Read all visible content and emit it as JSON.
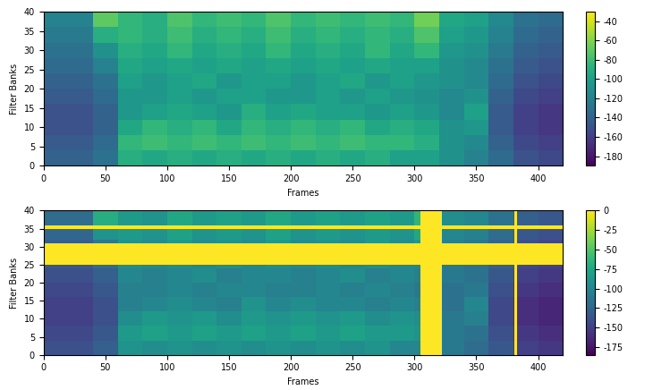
{
  "chart_data": [
    {
      "type": "heatmap",
      "x_label": "Frames",
      "y_label": "Filter Banks",
      "xlim": [
        0,
        420
      ],
      "ylim": [
        0,
        40
      ],
      "xticks": [
        0,
        50,
        100,
        150,
        200,
        250,
        300,
        350,
        400
      ],
      "yticks": [
        0,
        5,
        10,
        15,
        20,
        25,
        30,
        35,
        40
      ],
      "x_edges": [
        0,
        20,
        40,
        60,
        80,
        100,
        120,
        140,
        160,
        180,
        200,
        220,
        240,
        260,
        280,
        300,
        320,
        340,
        360,
        380,
        400,
        420
      ],
      "y_edges": [
        0,
        4,
        8,
        12,
        16,
        20,
        24,
        28,
        32,
        36,
        40
      ],
      "cells": [
        [
          -140,
          -140,
          -130,
          -90,
          -95,
          -90,
          -95,
          -90,
          -95,
          -90,
          -95,
          -90,
          -95,
          -90,
          -100,
          -100,
          -110,
          -120,
          -135,
          -150,
          -155
        ],
        [
          -145,
          -145,
          -135,
          -85,
          -80,
          -85,
          -80,
          -85,
          -80,
          -85,
          -80,
          -85,
          -80,
          -85,
          -85,
          -90,
          -110,
          -115,
          -140,
          -155,
          -160
        ],
        [
          -150,
          -150,
          -140,
          -95,
          -85,
          -90,
          -85,
          -95,
          -85,
          -90,
          -85,
          -90,
          -85,
          -95,
          -90,
          -95,
          -110,
          -105,
          -145,
          -160,
          -165
        ],
        [
          -150,
          -150,
          -140,
          -105,
          -100,
          -95,
          -100,
          -105,
          -90,
          -100,
          -95,
          -100,
          -100,
          -105,
          -100,
          -105,
          -115,
          -100,
          -145,
          -160,
          -165
        ],
        [
          -145,
          -145,
          -135,
          -105,
          -105,
          -100,
          -105,
          -100,
          -100,
          -105,
          -105,
          -100,
          -105,
          -100,
          -105,
          -110,
          -115,
          -110,
          -140,
          -155,
          -160
        ],
        [
          -140,
          -140,
          -130,
          -100,
          -105,
          -100,
          -95,
          -105,
          -100,
          -100,
          -105,
          -100,
          -95,
          -105,
          -100,
          -105,
          -110,
          -115,
          -135,
          -150,
          -155
        ],
        [
          -135,
          -135,
          -120,
          -95,
          -100,
          -95,
          -100,
          -95,
          -100,
          -95,
          -100,
          -95,
          -100,
          -95,
          -100,
          -100,
          -110,
          -115,
          -130,
          -145,
          -150
        ],
        [
          -130,
          -130,
          -110,
          -90,
          -95,
          -85,
          -95,
          -90,
          -95,
          -85,
          -95,
          -90,
          -95,
          -85,
          -95,
          -85,
          -105,
          -110,
          -125,
          -140,
          -145
        ],
        [
          -125,
          -125,
          -90,
          -85,
          -90,
          -80,
          -90,
          -85,
          -90,
          -80,
          -90,
          -85,
          -90,
          -85,
          -90,
          -75,
          -100,
          -105,
          -120,
          -135,
          -140
        ],
        [
          -120,
          -120,
          -70,
          -85,
          -90,
          -75,
          -85,
          -80,
          -85,
          -75,
          -85,
          -80,
          -85,
          -80,
          -85,
          -65,
          -95,
          -100,
          -115,
          -130,
          -135
        ]
      ],
      "colorbar_range": [
        -190,
        -30
      ],
      "colorbar_ticks": [
        -180,
        -160,
        -140,
        -120,
        -100,
        -80,
        -60,
        -40
      ]
    },
    {
      "type": "heatmap",
      "x_label": "Frames",
      "y_label": "Filter Banks",
      "xlim": [
        0,
        420
      ],
      "ylim": [
        0,
        40
      ],
      "xticks": [
        0,
        50,
        100,
        150,
        200,
        250,
        300,
        350,
        400
      ],
      "yticks": [
        0,
        5,
        10,
        15,
        20,
        25,
        30,
        35,
        40
      ],
      "x_edges": [
        0,
        20,
        40,
        60,
        80,
        100,
        120,
        140,
        160,
        180,
        200,
        220,
        240,
        260,
        280,
        300,
        320,
        340,
        360,
        380,
        400,
        420
      ],
      "y_edges": [
        0,
        4,
        8,
        12,
        16,
        20,
        24,
        28,
        32,
        36,
        40
      ],
      "cells": [
        [
          -140,
          -140,
          -130,
          -90,
          -95,
          -90,
          -95,
          -90,
          -95,
          -90,
          -95,
          -90,
          -95,
          -90,
          -100,
          -100,
          -110,
          -120,
          -135,
          -150,
          -155
        ],
        [
          -145,
          -145,
          -135,
          -85,
          -80,
          -85,
          -80,
          -85,
          -80,
          -85,
          -80,
          -85,
          -80,
          -85,
          -85,
          -90,
          -110,
          -115,
          -140,
          -155,
          -160
        ],
        [
          -150,
          -150,
          -140,
          -95,
          -85,
          -90,
          -85,
          -95,
          -85,
          -90,
          -85,
          -90,
          -85,
          -95,
          -90,
          -95,
          -110,
          -105,
          -145,
          -160,
          -165
        ],
        [
          -150,
          -150,
          -140,
          -105,
          -100,
          -95,
          -100,
          -105,
          -90,
          -100,
          -95,
          -100,
          -100,
          -105,
          -100,
          -105,
          -115,
          -100,
          -145,
          -160,
          -165
        ],
        [
          -145,
          -145,
          -135,
          -105,
          -105,
          -100,
          -105,
          -100,
          -100,
          -105,
          -105,
          -100,
          -105,
          -100,
          -105,
          -110,
          -115,
          -110,
          -140,
          -155,
          -160
        ],
        [
          -140,
          -140,
          -130,
          -100,
          -105,
          -100,
          -95,
          -105,
          -100,
          -100,
          -105,
          -100,
          -95,
          -105,
          -100,
          -105,
          -110,
          -115,
          -135,
          -150,
          -155
        ],
        [
          -135,
          -135,
          -120,
          -95,
          -100,
          -95,
          -100,
          -95,
          -100,
          -95,
          -100,
          -95,
          -100,
          -95,
          -100,
          -100,
          -110,
          -115,
          -130,
          -145,
          -150
        ],
        [
          -130,
          -130,
          -110,
          -90,
          -95,
          -85,
          -95,
          -90,
          -95,
          -85,
          -95,
          -90,
          -95,
          -85,
          -95,
          -85,
          -105,
          -110,
          -125,
          -140,
          -145
        ],
        [
          -125,
          -125,
          -90,
          -85,
          -90,
          -80,
          -90,
          -85,
          -90,
          -80,
          -90,
          -85,
          -90,
          -85,
          -90,
          -75,
          -100,
          -105,
          -120,
          -135,
          -140
        ],
        [
          -120,
          -120,
          -70,
          -85,
          -90,
          -75,
          -85,
          -80,
          -85,
          -75,
          -85,
          -80,
          -85,
          -80,
          -85,
          -65,
          -95,
          -100,
          -115,
          -130,
          -135
        ]
      ],
      "freq_masks": [
        [
          25,
          31
        ],
        [
          35,
          36
        ]
      ],
      "time_masks": [
        [
          305,
          322
        ],
        [
          381,
          383
        ]
      ],
      "mask_value": 0,
      "colorbar_range": [
        -185,
        0
      ],
      "colorbar_ticks": [
        -175,
        -150,
        -125,
        -100,
        -75,
        -50,
        -25,
        0
      ]
    }
  ]
}
